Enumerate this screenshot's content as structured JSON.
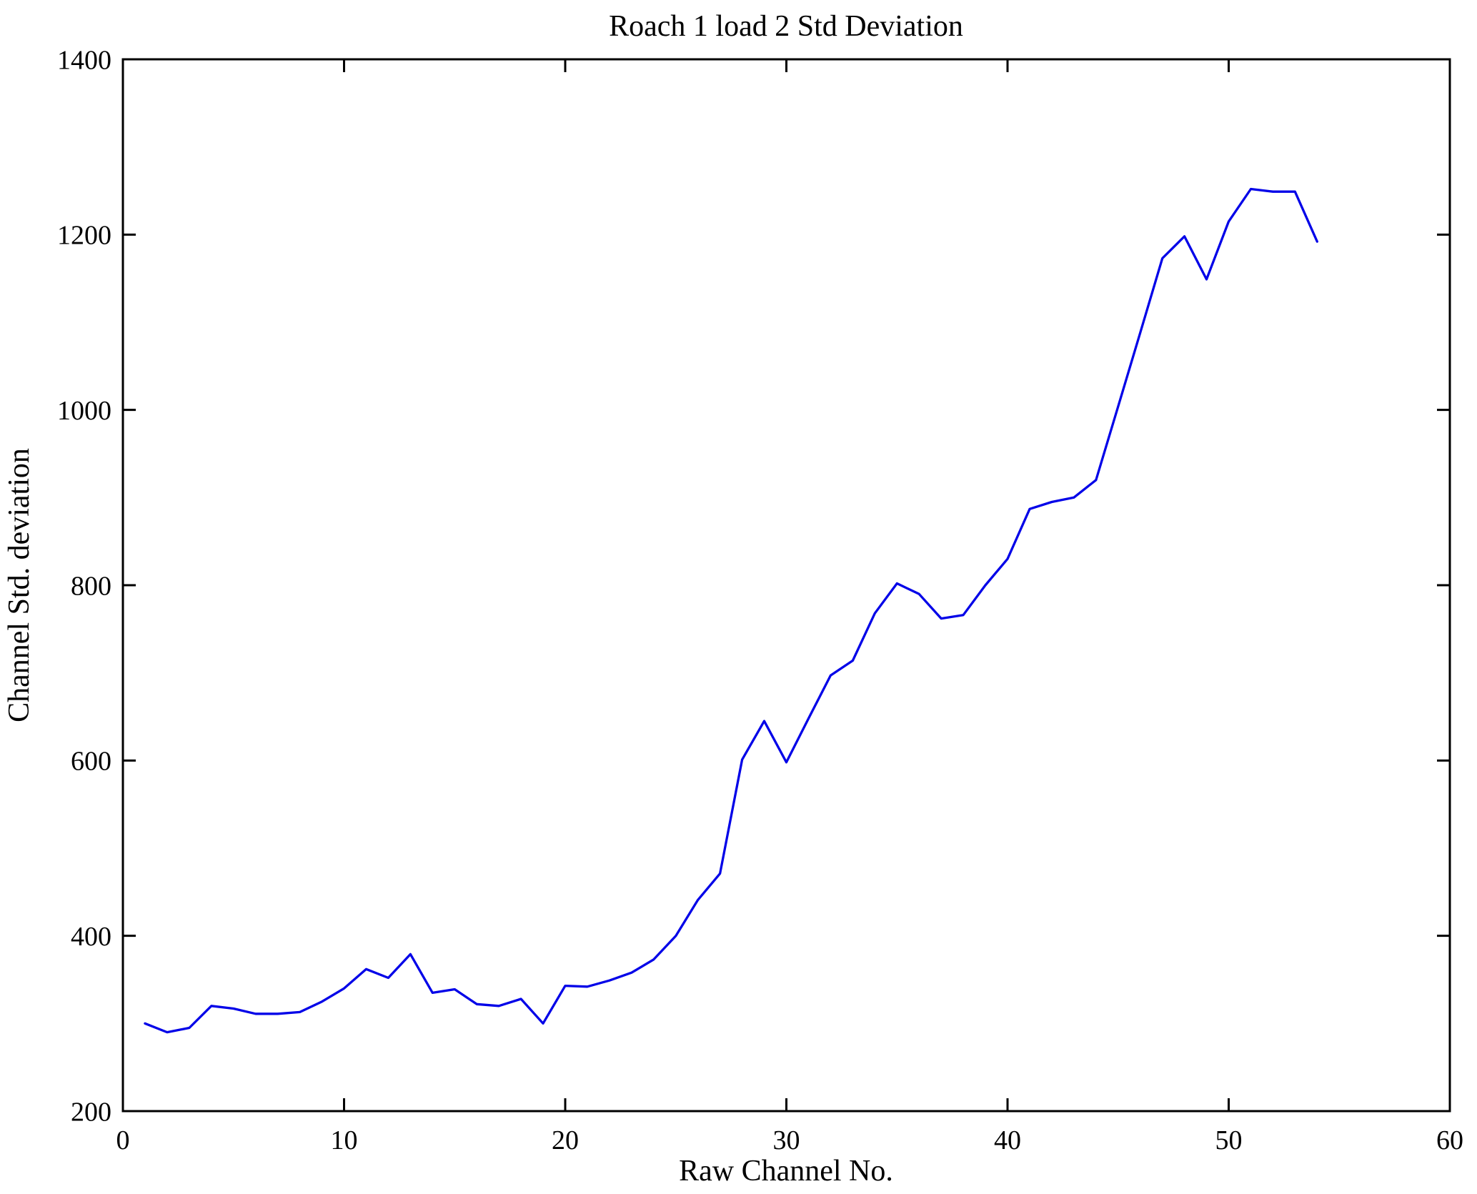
{
  "chart_data": {
    "type": "line",
    "title": "Roach 1 load 2 Std Deviation",
    "xlabel": "Raw Channel No.",
    "ylabel": "Channel Std. deviation",
    "x": [
      1,
      2,
      3,
      4,
      5,
      6,
      7,
      8,
      9,
      10,
      11,
      12,
      13,
      14,
      15,
      16,
      17,
      18,
      19,
      20,
      21,
      22,
      23,
      24,
      25,
      26,
      27,
      28,
      29,
      30,
      31,
      32,
      33,
      34,
      35,
      36,
      37,
      38,
      39,
      40,
      41,
      42,
      43,
      44,
      45,
      46,
      47,
      48,
      49,
      50,
      51,
      52,
      53,
      54
    ],
    "values": [
      300,
      290,
      295,
      320,
      317,
      311,
      311,
      313,
      325,
      340,
      362,
      352,
      379,
      335,
      339,
      322,
      320,
      328,
      300,
      343,
      342,
      349,
      358,
      373,
      400,
      441,
      471,
      601,
      645,
      598,
      648,
      697,
      714,
      768,
      802,
      790,
      762,
      766,
      800,
      830,
      887,
      895,
      900,
      920,
      1004,
      1088,
      1173,
      1198,
      1149,
      1215,
      1252,
      1249,
      1249,
      1192
    ],
    "xlim": [
      0,
      60
    ],
    "ylim": [
      200,
      1400
    ],
    "xticks": [
      0,
      10,
      20,
      30,
      40,
      50,
      60
    ],
    "yticks": [
      200,
      400,
      600,
      800,
      1000,
      1200,
      1400
    ],
    "grid": false,
    "legend": "none",
    "line_color": "#0202e8",
    "axis_color": "#000000",
    "background_color": "#ffffff"
  }
}
